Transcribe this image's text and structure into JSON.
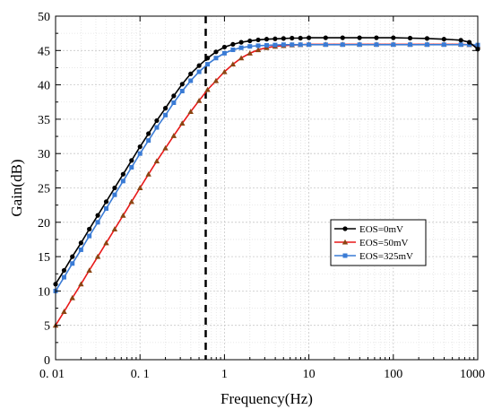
{
  "chart_data": {
    "type": "line",
    "xlabel": "Frequency(Hz)",
    "ylabel": "Gain(dB)",
    "xscale": "log",
    "xlim": [
      0.01,
      1000
    ],
    "ylim": [
      0,
      50
    ],
    "xticks": [
      0.01,
      0.1,
      1,
      10,
      100,
      1000
    ],
    "xtick_labels": [
      "0. 01",
      "0. 1",
      "1",
      "10",
      "100",
      "1000"
    ],
    "yticks": [
      0,
      5,
      10,
      15,
      20,
      25,
      30,
      35,
      40,
      45,
      50
    ],
    "grid": true,
    "legend_position": "center-right",
    "annotations": [
      {
        "type": "vertical-dashed-line",
        "x": 0.6,
        "color": "#000000"
      }
    ],
    "series": [
      {
        "name": "EOS=0mV",
        "color": "#000000",
        "marker": "circle",
        "x": [
          0.01,
          0.0126,
          0.0158,
          0.02,
          0.0251,
          0.0316,
          0.0398,
          0.0501,
          0.0631,
          0.0794,
          0.1,
          0.126,
          0.158,
          0.2,
          0.251,
          0.316,
          0.398,
          0.501,
          0.631,
          0.794,
          1,
          1.26,
          1.58,
          2,
          2.51,
          3.16,
          3.98,
          5.01,
          6.31,
          7.94,
          10,
          15.8,
          25.1,
          39.8,
          63.1,
          100,
          158,
          251,
          398,
          631,
          794,
          1000
        ],
        "y": [
          11,
          13,
          15,
          17,
          19,
          21,
          23,
          25,
          27,
          29,
          31,
          32.9,
          34.8,
          36.6,
          38.4,
          40.1,
          41.6,
          42.8,
          43.9,
          44.8,
          45.5,
          45.9,
          46.2,
          46.4,
          46.55,
          46.65,
          46.7,
          46.75,
          46.8,
          46.8,
          46.85,
          46.85,
          46.85,
          46.85,
          46.85,
          46.85,
          46.8,
          46.75,
          46.65,
          46.5,
          46.2,
          45.2
        ]
      },
      {
        "name": "EOS=50mV",
        "color": "#8B4513",
        "marker": "triangle",
        "x": [
          0.01,
          0.0126,
          0.0158,
          0.02,
          0.0251,
          0.0316,
          0.0398,
          0.0501,
          0.0631,
          0.0794,
          0.1,
          0.126,
          0.158,
          0.2,
          0.251,
          0.316,
          0.398,
          0.501,
          0.631,
          0.794,
          1,
          1.26,
          1.58,
          2,
          2.51,
          3.16,
          3.98,
          5.01,
          6.31,
          7.94,
          10,
          15.8,
          25.1,
          39.8,
          63.1,
          100,
          158,
          251,
          398,
          631,
          794,
          1000
        ],
        "y": [
          5,
          7,
          9,
          11,
          13,
          15,
          17,
          19,
          21,
          23,
          25,
          27,
          28.9,
          30.8,
          32.6,
          34.4,
          36.1,
          37.7,
          39.3,
          40.6,
          41.9,
          43,
          43.9,
          44.6,
          45.1,
          45.4,
          45.6,
          45.7,
          45.8,
          45.85,
          45.9,
          45.9,
          45.9,
          45.9,
          45.9,
          45.9,
          45.9,
          45.9,
          45.9,
          45.9,
          45.85,
          45.7
        ]
      },
      {
        "name": "EOS=325mV",
        "color": "#3A7BD5",
        "marker": "square",
        "x": [
          0.01,
          0.0126,
          0.0158,
          0.02,
          0.0251,
          0.0316,
          0.0398,
          0.0501,
          0.0631,
          0.0794,
          0.1,
          0.126,
          0.158,
          0.2,
          0.251,
          0.316,
          0.398,
          0.501,
          0.631,
          0.794,
          1,
          1.26,
          1.58,
          2,
          2.51,
          3.16,
          3.98,
          5.01,
          6.31,
          7.94,
          10,
          15.8,
          25.1,
          39.8,
          63.1,
          100,
          158,
          251,
          398,
          631,
          794,
          1000
        ],
        "y": [
          10,
          12,
          14,
          16,
          18,
          20,
          22,
          24,
          26,
          28,
          30,
          31.9,
          33.8,
          35.6,
          37.4,
          39.1,
          40.6,
          41.9,
          43,
          43.9,
          44.6,
          45.1,
          45.4,
          45.6,
          45.7,
          45.75,
          45.8,
          45.85,
          45.85,
          45.85,
          45.85,
          45.85,
          45.85,
          45.85,
          45.85,
          45.85,
          45.85,
          45.85,
          45.85,
          45.85,
          45.85,
          45.8
        ]
      }
    ]
  }
}
